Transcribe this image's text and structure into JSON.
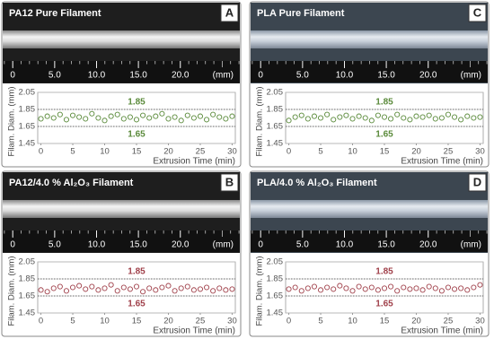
{
  "chart_data": [
    {
      "type": "scatter",
      "panel": "A",
      "title": "PA12 Pure Filament",
      "color": "#5a8a3a",
      "ruler": {
        "xlim": [
          -1.2,
          27.1
        ],
        "ticks": [
          0,
          {
            "value": 5,
            "label": "5.0"
          },
          {
            "value": 10,
            "label": "10.0"
          },
          {
            "value": 15,
            "label": "15.0"
          },
          {
            "value": 20,
            "label": "20.0"
          }
        ],
        "unit": "(mm)"
      },
      "ylabel": "Filam. Diam. (mm)",
      "xlabel": "Extrusion Time (min)",
      "xlim": [
        -0.5,
        30.5
      ],
      "xticks": [
        0,
        5,
        10,
        15,
        20,
        25,
        30
      ],
      "ylim": [
        1.45,
        2.05
      ],
      "yticks": [
        1.45,
        1.65,
        1.85,
        2.05
      ],
      "ref_lines": [
        1.85,
        1.65
      ],
      "x": [
        0,
        1,
        2,
        3,
        4,
        5,
        6,
        7,
        8,
        9,
        10,
        11,
        12,
        13,
        14,
        15,
        16,
        17,
        18,
        19,
        20,
        21,
        22,
        23,
        24,
        25,
        26,
        27,
        28,
        29,
        30
      ],
      "values": [
        1.74,
        1.77,
        1.75,
        1.79,
        1.73,
        1.78,
        1.76,
        1.74,
        1.8,
        1.75,
        1.72,
        1.77,
        1.79,
        1.74,
        1.76,
        1.73,
        1.78,
        1.75,
        1.77,
        1.8,
        1.74,
        1.76,
        1.72,
        1.78,
        1.75,
        1.77,
        1.73,
        1.79,
        1.76,
        1.74,
        1.77
      ]
    },
    {
      "type": "scatter",
      "panel": "C",
      "title": "PLA Pure Filament",
      "color": "#5a8a3a",
      "ruler": {
        "xlim": [
          -1.2,
          27.1
        ],
        "ticks": [
          0,
          {
            "value": 5,
            "label": "5.0"
          },
          {
            "value": 10,
            "label": "10.0"
          },
          {
            "value": 15,
            "label": "15.0"
          },
          {
            "value": 20,
            "label": "20.0"
          }
        ],
        "unit": "(mm)"
      },
      "ylabel": "Filam. Diam. (mm)",
      "xlabel": "Extrusion Time (min)",
      "xlim": [
        -0.5,
        30.5
      ],
      "xticks": [
        0,
        5,
        10,
        15,
        20,
        25,
        30
      ],
      "ylim": [
        1.45,
        2.05
      ],
      "yticks": [
        1.45,
        1.65,
        1.85,
        2.05
      ],
      "ref_lines": [
        1.85,
        1.65
      ],
      "x": [
        0,
        1,
        2,
        3,
        4,
        5,
        6,
        7,
        8,
        9,
        10,
        11,
        12,
        13,
        14,
        15,
        16,
        17,
        18,
        19,
        20,
        21,
        22,
        23,
        24,
        25,
        26,
        27,
        28,
        29,
        30
      ],
      "values": [
        1.72,
        1.76,
        1.78,
        1.74,
        1.77,
        1.75,
        1.79,
        1.73,
        1.76,
        1.78,
        1.74,
        1.77,
        1.75,
        1.72,
        1.78,
        1.76,
        1.74,
        1.79,
        1.75,
        1.73,
        1.77,
        1.76,
        1.78,
        1.74,
        1.75,
        1.79,
        1.76,
        1.73,
        1.77,
        1.75,
        1.76
      ]
    },
    {
      "type": "scatter",
      "panel": "B",
      "title": "PA12/4.0 % Al₂O₃ Filament",
      "color": "#a0404a",
      "ruler": {
        "xlim": [
          -1.2,
          27.1
        ],
        "ticks": [
          0,
          {
            "value": 5,
            "label": "5.0"
          },
          {
            "value": 10,
            "label": "10.0"
          },
          {
            "value": 15,
            "label": "15.0"
          },
          {
            "value": 20,
            "label": "20.0"
          }
        ],
        "unit": "(mm)"
      },
      "ylabel": "Filam. Diam. (mm)",
      "xlabel": "Extrusion Time (min)",
      "xlim": [
        -0.5,
        30.5
      ],
      "xticks": [
        0,
        5,
        10,
        15,
        20,
        25,
        30
      ],
      "ylim": [
        1.45,
        2.05
      ],
      "yticks": [
        1.45,
        1.65,
        1.85,
        2.05
      ],
      "ref_lines": [
        1.85,
        1.65
      ],
      "x": [
        0,
        1,
        2,
        3,
        4,
        5,
        6,
        7,
        8,
        9,
        10,
        11,
        12,
        13,
        14,
        15,
        16,
        17,
        18,
        19,
        20,
        21,
        22,
        23,
        24,
        25,
        26,
        27,
        28,
        29,
        30
      ],
      "values": [
        1.72,
        1.7,
        1.74,
        1.76,
        1.71,
        1.75,
        1.77,
        1.73,
        1.76,
        1.72,
        1.74,
        1.78,
        1.71,
        1.75,
        1.73,
        1.76,
        1.7,
        1.74,
        1.72,
        1.75,
        1.77,
        1.71,
        1.74,
        1.76,
        1.72,
        1.73,
        1.75,
        1.71,
        1.74,
        1.72,
        1.73
      ]
    },
    {
      "type": "scatter",
      "panel": "D",
      "title": "PLA/4.0 % Al₂O₃ Filament",
      "color": "#a0404a",
      "ruler": {
        "xlim": [
          -1.2,
          27.1
        ],
        "ticks": [
          0,
          {
            "value": 5,
            "label": "5.0"
          },
          {
            "value": 10,
            "label": "10.0"
          },
          {
            "value": 15,
            "label": "15.0"
          },
          {
            "value": 20,
            "label": "20.0"
          }
        ],
        "unit": "(mm)"
      },
      "ylabel": "Filam. Diam. (mm)",
      "xlabel": "Extrusion Time (min)",
      "xlim": [
        -0.5,
        30.5
      ],
      "xticks": [
        0,
        5,
        10,
        15,
        20,
        25,
        30
      ],
      "ylim": [
        1.45,
        2.05
      ],
      "yticks": [
        1.45,
        1.65,
        1.85,
        2.05
      ],
      "ref_lines": [
        1.85,
        1.65
      ],
      "x": [
        0,
        1,
        2,
        3,
        4,
        5,
        6,
        7,
        8,
        9,
        10,
        11,
        12,
        13,
        14,
        15,
        16,
        17,
        18,
        19,
        20,
        21,
        22,
        23,
        24,
        25,
        26,
        27,
        28,
        29,
        30
      ],
      "values": [
        1.73,
        1.75,
        1.71,
        1.74,
        1.76,
        1.72,
        1.75,
        1.73,
        1.77,
        1.74,
        1.71,
        1.76,
        1.73,
        1.75,
        1.72,
        1.74,
        1.76,
        1.71,
        1.75,
        1.73,
        1.74,
        1.72,
        1.76,
        1.74,
        1.71,
        1.75,
        1.73,
        1.74,
        1.72,
        1.75,
        1.78
      ]
    }
  ]
}
